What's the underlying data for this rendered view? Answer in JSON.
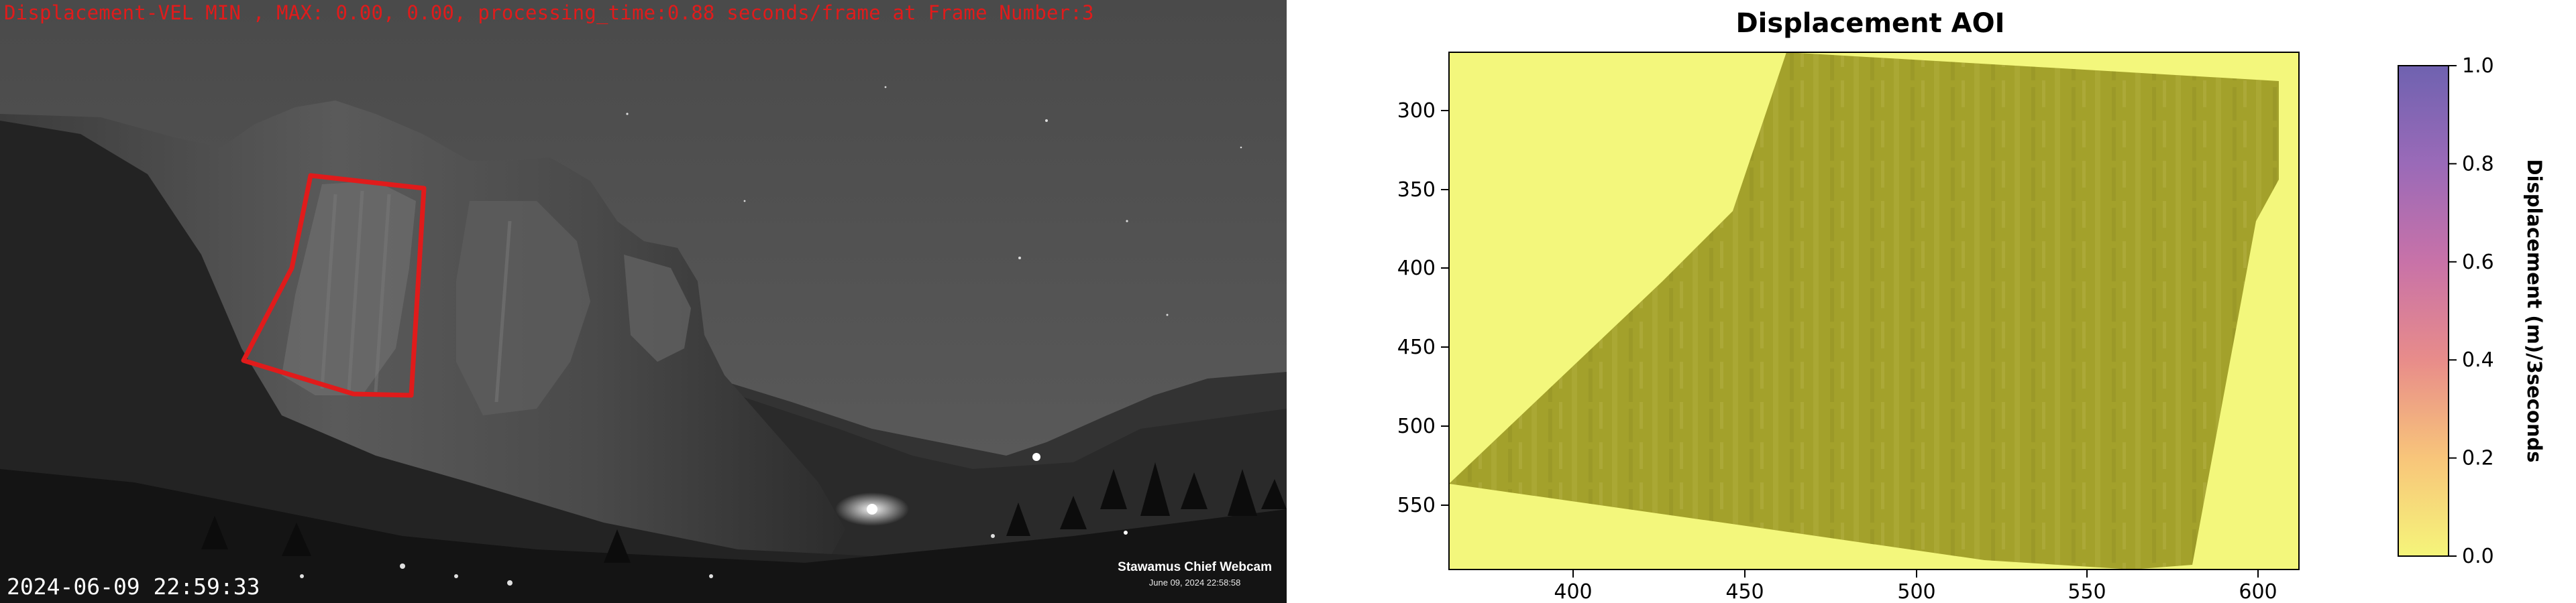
{
  "webcam": {
    "overlay_text": "Displacement-VEL MIN , MAX: 0.00, 0.00, processing_time:0.88 seconds/frame at Frame Number:3",
    "timestamp": "2024-06-09 22:59:33",
    "brand_name": "Stawamus Chief Webcam",
    "brand_date": "June 09, 2024 22:58:58",
    "aoi_outline_color": "#e01b1b"
  },
  "plot": {
    "title": "Displacement AOI",
    "x_ticks": [
      "400",
      "450",
      "500",
      "550",
      "600"
    ],
    "y_ticks": [
      "300",
      "350",
      "400",
      "450",
      "500",
      "550"
    ],
    "colorbar": {
      "label": "Displacement (m)/3seconds",
      "ticks": [
        "0.0",
        "0.2",
        "0.4",
        "0.6",
        "0.8",
        "1.0"
      ],
      "colors": [
        "#f5f57a",
        "#f8c57a",
        "#e88c8a",
        "#c872a8",
        "#9a6ab8",
        "#6f62b0"
      ]
    },
    "background_color": "#f3f77c",
    "region_color": "#a3a12b"
  }
}
